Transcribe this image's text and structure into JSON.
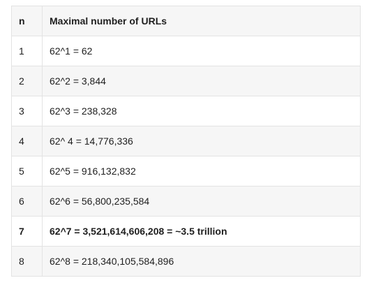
{
  "table": {
    "headers": [
      "n",
      "Maximal number of URLs"
    ],
    "rows": [
      {
        "n": "1",
        "value": "62^1 = 62",
        "bold": false
      },
      {
        "n": "2",
        "value": "62^2 = 3,844",
        "bold": false
      },
      {
        "n": "3",
        "value": "62^3 = 238,328",
        "bold": false
      },
      {
        "n": "4",
        "value": "62^ 4 = 14,776,336",
        "bold": false
      },
      {
        "n": "5",
        "value": "62^5 = 916,132,832",
        "bold": false
      },
      {
        "n": "6",
        "value": "62^6 = 56,800,235,584",
        "bold": false
      },
      {
        "n": "7",
        "value": "62^7 = 3,521,614,606,208 = ~3.5 trillion",
        "bold": true
      },
      {
        "n": "8",
        "value": "62^8 = 218,340,105,584,896",
        "bold": false
      }
    ]
  }
}
